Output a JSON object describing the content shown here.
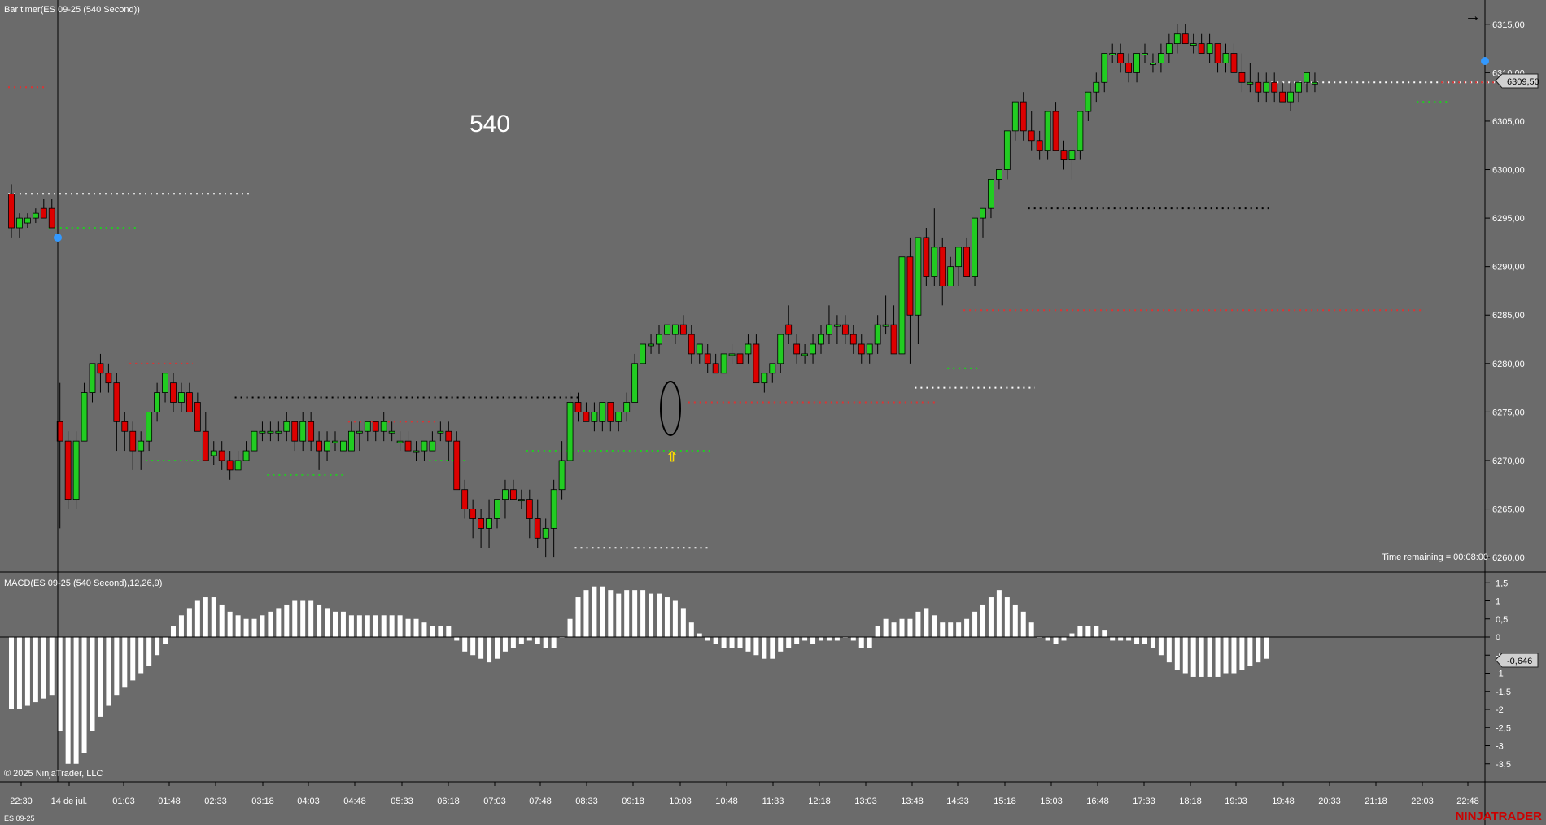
{
  "window": {
    "price_panel_title": "Bar timer(ES 09-25 (540 Second))",
    "macd_panel_title": "MACD(ES 09-25 (540 Second),12,26,9)",
    "big_label": "540",
    "time_remaining": "Time remaining = 00:08:00",
    "copyright": "© 2025 NinjaTrader, LLC",
    "instrument_tab": "ES 09-25",
    "brand": "NINJATRADER",
    "price_marker": "6309,50",
    "macd_marker": "-0,646"
  },
  "colors": {
    "background": "#6b6b6b",
    "up_candle": "#22cc22",
    "down_candle": "#dd0000",
    "wick": "#000000",
    "macd_bar": "#ffffff",
    "brand": "#cc0000",
    "marker_dot": "#3399ff"
  },
  "chart_data": [
    {
      "type": "candlestick",
      "y_ticks": [
        "6315,00",
        "6310,00",
        "6305,00",
        "6300,00",
        "6295,00",
        "6290,00",
        "6285,00",
        "6280,00",
        "6275,00",
        "6270,00",
        "6265,00",
        "6260,00"
      ],
      "y_range": [
        6258.5,
        6317.5
      ],
      "x_tick_labels": [
        "22:30",
        "14 de jul.",
        "01:03",
        "01:48",
        "02:33",
        "03:18",
        "04:03",
        "04:48",
        "05:33",
        "06:18",
        "07:03",
        "07:48",
        "08:33",
        "09:18",
        "10:03",
        "10:48",
        "11:33",
        "12:18",
        "13:03",
        "13:48",
        "14:33",
        "15:18",
        "16:03",
        "16:48",
        "17:33",
        "18:18",
        "19:03",
        "19:48",
        "20:33",
        "21:18",
        "22:03",
        "22:48"
      ],
      "ohlc": [
        [
          6297.5,
          6298.5,
          6293,
          6294
        ],
        [
          6294,
          6295.5,
          6293,
          6295
        ],
        [
          6294.5,
          6295.5,
          6294,
          6295
        ],
        [
          6295,
          6296,
          6294.5,
          6295.5
        ],
        [
          6296,
          6297,
          6295,
          6295
        ],
        [
          6296,
          6297,
          6294,
          6294
        ],
        [
          6274,
          6278,
          6263,
          6272
        ],
        [
          6272,
          6273,
          6265,
          6266
        ],
        [
          6266,
          6273,
          6265,
          6272
        ],
        [
          6272,
          6278,
          6272,
          6277
        ],
        [
          6277,
          6280,
          6276,
          6280
        ],
        [
          6280,
          6281,
          6277,
          6279
        ],
        [
          6279,
          6280,
          6277,
          6278
        ],
        [
          6278,
          6279,
          6271,
          6274
        ],
        [
          6274,
          6275,
          6271,
          6273
        ],
        [
          6273,
          6274,
          6269,
          6271
        ],
        [
          6271,
          6273,
          6269,
          6272
        ],
        [
          6272,
          6275,
          6271,
          6275
        ],
        [
          6275,
          6278,
          6274,
          6277
        ],
        [
          6277,
          6279,
          6276,
          6279
        ],
        [
          6278,
          6279,
          6275,
          6276
        ],
        [
          6276,
          6278,
          6275,
          6277
        ],
        [
          6277,
          6278,
          6275,
          6275
        ],
        [
          6276,
          6277,
          6273,
          6273
        ],
        [
          6273,
          6275,
          6270,
          6270
        ],
        [
          6270.5,
          6272,
          6269.5,
          6271
        ],
        [
          6271,
          6272,
          6269,
          6270
        ],
        [
          6270,
          6271,
          6268,
          6269
        ],
        [
          6269,
          6271,
          6269,
          6270
        ],
        [
          6270,
          6272,
          6270,
          6271
        ],
        [
          6271,
          6273,
          6271,
          6273
        ],
        [
          6273,
          6274,
          6272,
          6273
        ],
        [
          6273,
          6274,
          6272,
          6273
        ],
        [
          6273,
          6274,
          6272,
          6273
        ],
        [
          6273,
          6275,
          6272,
          6274
        ],
        [
          6274,
          6274,
          6271,
          6272
        ],
        [
          6272,
          6275,
          6271,
          6274
        ],
        [
          6274,
          6275,
          6271,
          6272
        ],
        [
          6272,
          6273,
          6269,
          6271
        ],
        [
          6271,
          6273,
          6270,
          6272
        ],
        [
          6272,
          6273,
          6271,
          6272
        ],
        [
          6271,
          6272,
          6271,
          6272
        ],
        [
          6271,
          6274,
          6271,
          6273
        ],
        [
          6273,
          6274,
          6271,
          6273
        ],
        [
          6273,
          6274,
          6272,
          6274
        ],
        [
          6274,
          6274,
          6272,
          6273
        ],
        [
          6273,
          6275,
          6272,
          6274
        ],
        [
          6273,
          6274,
          6272,
          6273
        ],
        [
          6272,
          6273,
          6271,
          6272
        ],
        [
          6272,
          6273,
          6271,
          6271
        ],
        [
          6271,
          6272,
          6270,
          6271
        ],
        [
          6271,
          6272,
          6270,
          6272
        ],
        [
          6271,
          6273,
          6271,
          6272
        ],
        [
          6273,
          6274,
          6272,
          6273
        ],
        [
          6273,
          6274,
          6270,
          6272
        ],
        [
          6272,
          6273,
          6267,
          6267
        ],
        [
          6267,
          6268,
          6264,
          6265
        ],
        [
          6265,
          6266,
          6262,
          6264
        ],
        [
          6264,
          6265,
          6261,
          6263
        ],
        [
          6263,
          6266,
          6261,
          6264
        ],
        [
          6264,
          6266,
          6263,
          6266
        ],
        [
          6266,
          6268,
          6264,
          6267
        ],
        [
          6267,
          6268,
          6266,
          6266
        ],
        [
          6266,
          6267,
          6265,
          6266
        ],
        [
          6266,
          6267,
          6262,
          6264
        ],
        [
          6264,
          6266,
          6261,
          6262
        ],
        [
          6262,
          6264,
          6260,
          6263
        ],
        [
          6263,
          6268,
          6260,
          6267
        ],
        [
          6267,
          6272,
          6266,
          6270
        ],
        [
          6270,
          6277,
          6270,
          6276
        ],
        [
          6276,
          6277,
          6274,
          6275
        ],
        [
          6275,
          6276,
          6274,
          6274
        ],
        [
          6274,
          6276,
          6273,
          6275
        ],
        [
          6274,
          6276,
          6273,
          6276
        ],
        [
          6276,
          6276,
          6273,
          6274
        ],
        [
          6274,
          6275,
          6273,
          6275
        ],
        [
          6275,
          6277,
          6274,
          6276
        ],
        [
          6276,
          6281,
          6276,
          6280
        ],
        [
          6280,
          6282,
          6280,
          6282
        ],
        [
          6282,
          6283,
          6281,
          6282
        ],
        [
          6282,
          6284,
          6281,
          6283
        ],
        [
          6283,
          6284,
          6283,
          6284
        ],
        [
          6283,
          6284,
          6282,
          6284
        ],
        [
          6284,
          6285,
          6283,
          6283
        ],
        [
          6283,
          6284,
          6280,
          6281
        ],
        [
          6281,
          6282,
          6280,
          6282
        ],
        [
          6281,
          6282,
          6279,
          6280
        ],
        [
          6280,
          6281,
          6279,
          6279
        ],
        [
          6279,
          6281,
          6279,
          6281
        ],
        [
          6281,
          6282,
          6280,
          6281
        ],
        [
          6281,
          6282,
          6280,
          6280
        ],
        [
          6281,
          6283,
          6280,
          6282
        ],
        [
          6282,
          6283,
          6278,
          6278
        ],
        [
          6278,
          6279,
          6277,
          6279
        ],
        [
          6279,
          6280,
          6278,
          6280
        ],
        [
          6280,
          6283,
          6279,
          6283
        ],
        [
          6284,
          6286,
          6282,
          6283
        ],
        [
          6282,
          6283,
          6280,
          6281
        ],
        [
          6281,
          6282,
          6280,
          6281
        ],
        [
          6281,
          6283,
          6280,
          6282
        ],
        [
          6282,
          6284,
          6281,
          6283
        ],
        [
          6283,
          6286,
          6282,
          6284
        ],
        [
          6284,
          6285,
          6282,
          6284
        ],
        [
          6284,
          6285,
          6282,
          6283
        ],
        [
          6283,
          6284,
          6281,
          6282
        ],
        [
          6282,
          6283,
          6280,
          6281
        ],
        [
          6281,
          6282,
          6280,
          6282
        ],
        [
          6282,
          6285,
          6281,
          6284
        ],
        [
          6284,
          6287,
          6283,
          6284
        ],
        [
          6284,
          6286,
          6281,
          6281
        ],
        [
          6281,
          6291,
          6280,
          6291
        ],
        [
          6291,
          6293,
          6280,
          6285
        ],
        [
          6285,
          6293,
          6282,
          6293
        ],
        [
          6293,
          6294,
          6288,
          6289
        ],
        [
          6289,
          6296,
          6288,
          6292
        ],
        [
          6292,
          6293,
          6286,
          6288
        ],
        [
          6288,
          6291,
          6288,
          6290
        ],
        [
          6290,
          6292,
          6288,
          6292
        ],
        [
          6292,
          6293,
          6289,
          6289
        ],
        [
          6289,
          6295,
          6288,
          6295
        ],
        [
          6295,
          6296,
          6293,
          6296
        ],
        [
          6296,
          6299,
          6295,
          6299
        ],
        [
          6299,
          6300,
          6298,
          6300
        ],
        [
          6300,
          6304,
          6299,
          6304
        ],
        [
          6304,
          6307,
          6303,
          6307
        ],
        [
          6307,
          6308,
          6303,
          6304
        ],
        [
          6304,
          6306,
          6302,
          6303
        ],
        [
          6303,
          6304,
          6301,
          6302
        ],
        [
          6302,
          6306,
          6301,
          6306
        ],
        [
          6306,
          6307,
          6302,
          6302
        ],
        [
          6302,
          6303,
          6300,
          6301
        ],
        [
          6301,
          6302,
          6299,
          6302
        ],
        [
          6302,
          6306,
          6301,
          6306
        ],
        [
          6306,
          6308,
          6305,
          6308
        ],
        [
          6308,
          6310,
          6307,
          6309
        ],
        [
          6309,
          6312,
          6308,
          6312
        ],
        [
          6312,
          6313,
          6311,
          6312
        ],
        [
          6312,
          6313,
          6310,
          6311
        ],
        [
          6311,
          6312,
          6309,
          6310
        ],
        [
          6310,
          6312,
          6309,
          6312
        ],
        [
          6312,
          6313,
          6311,
          6312
        ],
        [
          6311,
          6312,
          6310,
          6311
        ],
        [
          6311,
          6313,
          6310,
          6312
        ],
        [
          6312,
          6314,
          6311,
          6313
        ],
        [
          6313,
          6315,
          6312,
          6314
        ],
        [
          6314,
          6315,
          6313,
          6313
        ],
        [
          6313,
          6314,
          6312,
          6313
        ],
        [
          6313,
          6314,
          6312,
          6312
        ],
        [
          6312,
          6314,
          6311,
          6313
        ],
        [
          6313,
          6313,
          6310,
          6311
        ],
        [
          6311,
          6313,
          6310,
          6312
        ],
        [
          6312,
          6313,
          6310,
          6310
        ],
        [
          6310,
          6312,
          6308,
          6309
        ],
        [
          6309,
          6311,
          6308,
          6309
        ],
        [
          6309,
          6310,
          6307,
          6308
        ],
        [
          6308,
          6310,
          6307,
          6309
        ],
        [
          6309,
          6310,
          6307,
          6308
        ],
        [
          6308,
          6309,
          6307,
          6307
        ],
        [
          6307,
          6309,
          6306,
          6308
        ],
        [
          6308,
          6309,
          6307,
          6309
        ],
        [
          6309,
          6310,
          6308,
          6310
        ],
        [
          6309,
          6310,
          6308,
          6309
        ]
      ],
      "levels": [
        {
          "price": 6297.5,
          "from": 0,
          "to": 29,
          "color": "#ffffff"
        },
        {
          "price": 6294,
          "from": 5,
          "to": 15,
          "color": "#22cc22"
        },
        {
          "price": 6308.5,
          "from": 0,
          "to": 4,
          "color": "#dd3333"
        },
        {
          "price": 6280,
          "from": 15,
          "to": 22,
          "color": "#dd3333"
        },
        {
          "price": 6276.5,
          "from": 28,
          "to": 70,
          "color": "#000000"
        },
        {
          "price": 6270,
          "from": 17,
          "to": 24,
          "color": "#22cc22"
        },
        {
          "price": 6268.5,
          "from": 32,
          "to": 41,
          "color": "#22cc22"
        },
        {
          "price": 6274,
          "from": 42,
          "to": 52,
          "color": "#dd3333"
        },
        {
          "price": 6270,
          "from": 52,
          "to": 56,
          "color": "#22cc22"
        },
        {
          "price": 6271,
          "from": 64,
          "to": 86,
          "color": "#22cc22"
        },
        {
          "price": 6261,
          "from": 70,
          "to": 86,
          "color": "#ffffff"
        },
        {
          "price": 6276,
          "from": 84,
          "to": 114,
          "color": "#dd3333"
        },
        {
          "price": 6277.5,
          "from": 112,
          "to": 126,
          "color": "#ffffff"
        },
        {
          "price": 6279.5,
          "from": 116,
          "to": 119,
          "color": "#22cc22"
        },
        {
          "price": 6285.5,
          "from": 118,
          "to": 174,
          "color": "#dd3333"
        },
        {
          "price": 6296,
          "from": 126,
          "to": 155,
          "color": "#000000"
        },
        {
          "price": 6309,
          "from": 156,
          "to": 184,
          "color": "#ffffff"
        },
        {
          "price": 6309,
          "from": 177,
          "to": 184,
          "color": "#dd3333"
        },
        {
          "price": 6307,
          "from": 174,
          "to": 177,
          "color": "#22cc22"
        }
      ]
    },
    {
      "type": "bar",
      "y_ticks": [
        "1,5",
        "1",
        "0,5",
        "0",
        "-0,5",
        "-1",
        "-1,5",
        "-2",
        "-2,5",
        "-3",
        "-3,5"
      ],
      "y_range": [
        -3.8,
        1.75
      ],
      "values": [
        -2,
        -2,
        -1.9,
        -1.8,
        -1.7,
        -1.6,
        -2.6,
        -3.5,
        -3.5,
        -3.2,
        -2.6,
        -2.2,
        -1.9,
        -1.6,
        -1.4,
        -1.2,
        -1.0,
        -0.8,
        -0.5,
        -0.2,
        0.3,
        0.6,
        0.8,
        1.0,
        1.1,
        1.1,
        0.9,
        0.7,
        0.6,
        0.5,
        0.5,
        0.6,
        0.7,
        0.8,
        0.9,
        1.0,
        1.0,
        1.0,
        0.9,
        0.8,
        0.7,
        0.7,
        0.6,
        0.6,
        0.6,
        0.6,
        0.6,
        0.6,
        0.6,
        0.5,
        0.5,
        0.4,
        0.3,
        0.3,
        0.3,
        -0.1,
        -0.4,
        -0.5,
        -0.6,
        -0.7,
        -0.6,
        -0.4,
        -0.3,
        -0.2,
        -0.1,
        -0.2,
        -0.3,
        -0.3,
        0.0,
        0.5,
        1.1,
        1.3,
        1.4,
        1.4,
        1.3,
        1.2,
        1.3,
        1.3,
        1.3,
        1.2,
        1.2,
        1.1,
        1.0,
        0.8,
        0.4,
        0.1,
        -0.1,
        -0.2,
        -0.3,
        -0.3,
        -0.3,
        -0.4,
        -0.5,
        -0.6,
        -0.6,
        -0.4,
        -0.3,
        -0.2,
        -0.1,
        -0.2,
        -0.1,
        -0.1,
        -0.1,
        0.0,
        -0.1,
        -0.3,
        -0.3,
        0.3,
        0.5,
        0.4,
        0.5,
        0.5,
        0.7,
        0.8,
        0.6,
        0.4,
        0.4,
        0.4,
        0.5,
        0.7,
        0.9,
        1.1,
        1.3,
        1.1,
        0.9,
        0.7,
        0.4,
        0.0,
        -0.1,
        -0.2,
        -0.1,
        0.1,
        0.3,
        0.3,
        0.3,
        0.2,
        -0.1,
        -0.1,
        -0.1,
        -0.2,
        -0.2,
        -0.3,
        -0.5,
        -0.7,
        -0.9,
        -1.0,
        -1.1,
        -1.1,
        -1.1,
        -1.1,
        -1.0,
        -1.0,
        -0.9,
        -0.8,
        -0.7,
        -0.6
      ]
    }
  ]
}
